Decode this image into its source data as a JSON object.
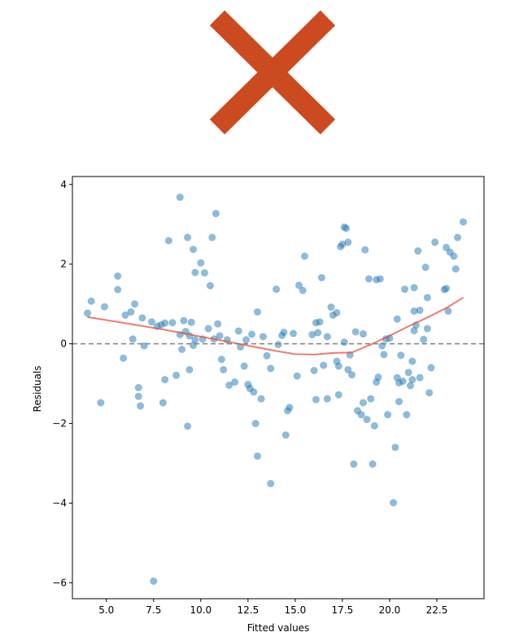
{
  "header": {
    "icon": "red-x-mark-icon",
    "icon_color": "#cc4a20"
  },
  "chart_data": {
    "type": "scatter",
    "xlabel": "Fitted values",
    "ylabel": "Residuals",
    "xlim": [
      3.2,
      25.0
    ],
    "ylim": [
      -6.4,
      4.2
    ],
    "x_ticks": [
      5.0,
      7.5,
      10.0,
      12.5,
      15.0,
      17.5,
      20.0,
      22.5
    ],
    "x_tick_labels": [
      "5.0",
      "7.5",
      "10.0",
      "12.5",
      "15.0",
      "17.5",
      "20.0",
      "22.5"
    ],
    "y_ticks": [
      4,
      2,
      0,
      -2,
      -4,
      -6
    ],
    "y_tick_labels": [
      "4",
      "2",
      "0",
      "−2",
      "−4",
      "−6"
    ],
    "zero_line": 0,
    "grid": false,
    "colors": {
      "points": "#1f77b4",
      "smooth": "#e8503c",
      "zero_line": "#808080"
    },
    "points": [
      [
        4.0,
        0.77
      ],
      [
        4.2,
        1.07
      ],
      [
        4.7,
        -1.48
      ],
      [
        4.9,
        0.93
      ],
      [
        5.6,
        1.36
      ],
      [
        5.6,
        1.7
      ],
      [
        5.9,
        -0.36
      ],
      [
        6.0,
        0.72
      ],
      [
        6.3,
        0.8
      ],
      [
        6.4,
        0.12
      ],
      [
        6.5,
        1.0
      ],
      [
        6.7,
        -1.1
      ],
      [
        6.7,
        -1.32
      ],
      [
        6.8,
        -1.56
      ],
      [
        6.9,
        0.65
      ],
      [
        7.0,
        -0.05
      ],
      [
        7.4,
        0.55
      ],
      [
        7.5,
        -5.96
      ],
      [
        7.7,
        0.44
      ],
      [
        7.9,
        0.48
      ],
      [
        8.0,
        -1.48
      ],
      [
        8.1,
        -0.9
      ],
      [
        8.1,
        0.52
      ],
      [
        8.3,
        2.59
      ],
      [
        8.5,
        0.53
      ],
      [
        8.7,
        -0.79
      ],
      [
        8.9,
        3.68
      ],
      [
        8.9,
        0.23
      ],
      [
        9.0,
        -0.14
      ],
      [
        9.1,
        0.58
      ],
      [
        9.2,
        0.31
      ],
      [
        9.3,
        2.67
      ],
      [
        9.3,
        -2.07
      ],
      [
        9.4,
        -0.65
      ],
      [
        9.4,
        0.2
      ],
      [
        9.5,
        0.54
      ],
      [
        9.6,
        2.37
      ],
      [
        9.6,
        -0.04
      ],
      [
        9.7,
        1.79
      ],
      [
        9.7,
        0.1
      ],
      [
        10.0,
        2.03
      ],
      [
        10.1,
        0.12
      ],
      [
        10.2,
        1.78
      ],
      [
        10.4,
        0.38
      ],
      [
        10.5,
        1.46
      ],
      [
        10.6,
        2.67
      ],
      [
        10.7,
        0.12
      ],
      [
        10.8,
        3.27
      ],
      [
        10.9,
        0.5
      ],
      [
        11.0,
        0.2
      ],
      [
        11.1,
        -0.39
      ],
      [
        11.2,
        -0.65
      ],
      [
        11.4,
        0.1
      ],
      [
        11.5,
        -1.04
      ],
      [
        11.8,
        -0.96
      ],
      [
        12.0,
        0.32
      ],
      [
        12.1,
        -0.08
      ],
      [
        12.3,
        -0.56
      ],
      [
        12.4,
        0.1
      ],
      [
        12.5,
        -1.02
      ],
      [
        12.6,
        -1.12
      ],
      [
        12.7,
        0.24
      ],
      [
        12.8,
        -1.21
      ],
      [
        12.9,
        -2.0
      ],
      [
        13.0,
        -2.82
      ],
      [
        13.0,
        0.8
      ],
      [
        13.2,
        -1.38
      ],
      [
        13.3,
        0.18
      ],
      [
        13.5,
        -0.3
      ],
      [
        13.7,
        -0.62
      ],
      [
        13.7,
        -3.51
      ],
      [
        14.0,
        1.37
      ],
      [
        14.1,
        -0.02
      ],
      [
        14.3,
        0.21
      ],
      [
        14.4,
        0.29
      ],
      [
        14.5,
        -2.29
      ],
      [
        14.6,
        -1.68
      ],
      [
        14.7,
        -1.6
      ],
      [
        14.9,
        0.26
      ],
      [
        15.1,
        -0.81
      ],
      [
        15.2,
        1.47
      ],
      [
        15.4,
        1.34
      ],
      [
        15.5,
        2.2
      ],
      [
        15.9,
        0.23
      ],
      [
        16.0,
        -0.67
      ],
      [
        16.1,
        -1.4
      ],
      [
        16.1,
        0.53
      ],
      [
        16.2,
        0.28
      ],
      [
        16.3,
        0.55
      ],
      [
        16.4,
        1.66
      ],
      [
        16.5,
        -0.54
      ],
      [
        16.7,
        -1.38
      ],
      [
        16.7,
        0.18
      ],
      [
        16.9,
        0.92
      ],
      [
        17.0,
        0.72
      ],
      [
        17.2,
        0.78
      ],
      [
        17.2,
        -0.44
      ],
      [
        17.3,
        -1.28
      ],
      [
        17.3,
        -0.56
      ],
      [
        17.4,
        2.44
      ],
      [
        17.5,
        2.5
      ],
      [
        17.6,
        2.93
      ],
      [
        17.6,
        0.04
      ],
      [
        17.7,
        2.9
      ],
      [
        17.8,
        2.55
      ],
      [
        17.8,
        -0.65
      ],
      [
        17.9,
        -0.28
      ],
      [
        18.0,
        -0.78
      ],
      [
        18.1,
        -3.02
      ],
      [
        18.2,
        0.3
      ],
      [
        18.3,
        -1.68
      ],
      [
        18.5,
        -1.78
      ],
      [
        18.6,
        -1.48
      ],
      [
        18.6,
        0.25
      ],
      [
        18.7,
        2.36
      ],
      [
        18.8,
        -1.9
      ],
      [
        18.9,
        1.63
      ],
      [
        19.0,
        -1.38
      ],
      [
        19.1,
        -3.02
      ],
      [
        19.2,
        -2.06
      ],
      [
        19.3,
        -0.96
      ],
      [
        19.3,
        1.61
      ],
      [
        19.4,
        -0.84
      ],
      [
        19.5,
        1.63
      ],
      [
        19.6,
        -0.05
      ],
      [
        19.7,
        -0.27
      ],
      [
        19.8,
        0.12
      ],
      [
        19.9,
        -1.78
      ],
      [
        20.0,
        0.14
      ],
      [
        20.2,
        -3.99
      ],
      [
        20.3,
        -2.6
      ],
      [
        20.4,
        0.62
      ],
      [
        20.4,
        -0.85
      ],
      [
        20.5,
        -0.98
      ],
      [
        20.5,
        -1.45
      ],
      [
        20.6,
        -0.29
      ],
      [
        20.7,
        -0.94
      ],
      [
        20.8,
        1.37
      ],
      [
        20.9,
        -1.78
      ],
      [
        21.0,
        -0.72
      ],
      [
        21.1,
        -1.05
      ],
      [
        21.2,
        -0.9
      ],
      [
        21.2,
        -0.44
      ],
      [
        21.3,
        0.33
      ],
      [
        21.3,
        1.41
      ],
      [
        21.3,
        0.82
      ],
      [
        21.4,
        0.47
      ],
      [
        21.5,
        2.33
      ],
      [
        21.6,
        -0.85
      ],
      [
        21.6,
        0.84
      ],
      [
        21.8,
        0.11
      ],
      [
        21.9,
        1.92
      ],
      [
        22.0,
        0.38
      ],
      [
        22.0,
        1.16
      ],
      [
        22.1,
        -1.23
      ],
      [
        22.2,
        -0.6
      ],
      [
        22.4,
        2.55
      ],
      [
        22.9,
        1.36
      ],
      [
        23.0,
        2.42
      ],
      [
        23.0,
        1.39
      ],
      [
        23.1,
        0.82
      ],
      [
        23.2,
        2.3
      ],
      [
        23.4,
        2.2
      ],
      [
        23.5,
        1.88
      ],
      [
        23.6,
        2.67
      ],
      [
        23.9,
        3.06
      ]
    ],
    "smooth_line": [
      [
        4.0,
        0.67
      ],
      [
        6.0,
        0.52
      ],
      [
        8.0,
        0.36
      ],
      [
        10.0,
        0.18
      ],
      [
        12.0,
        0.0
      ],
      [
        14.0,
        -0.18
      ],
      [
        15.0,
        -0.26
      ],
      [
        16.0,
        -0.27
      ],
      [
        17.0,
        -0.23
      ],
      [
        18.0,
        -0.22
      ],
      [
        19.0,
        -0.02
      ],
      [
        20.0,
        0.2
      ],
      [
        21.0,
        0.44
      ],
      [
        22.0,
        0.66
      ],
      [
        23.0,
        0.9
      ],
      [
        23.9,
        1.16
      ]
    ]
  }
}
